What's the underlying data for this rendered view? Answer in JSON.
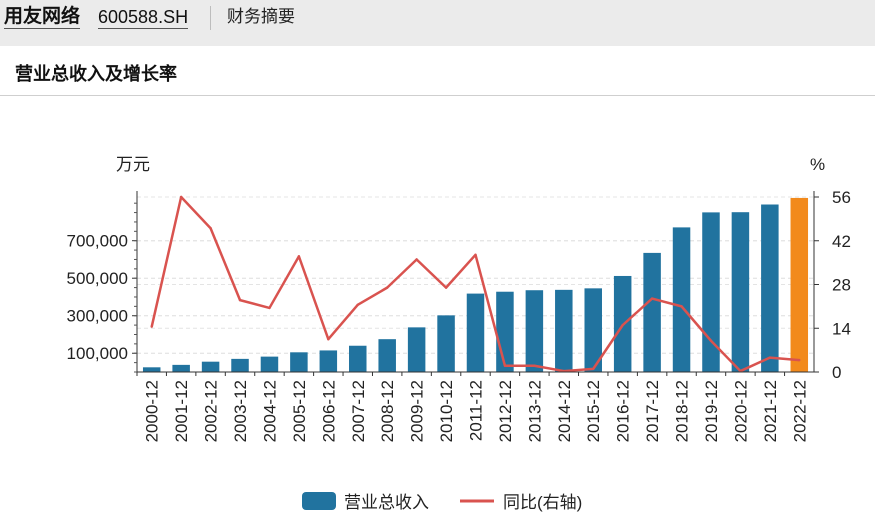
{
  "header": {
    "company_name": "用友网络",
    "stock_code": "600588.SH",
    "tab_label": "财务摘要"
  },
  "section": {
    "title": "营业总收入及增长率"
  },
  "chart_data": {
    "type": "bar",
    "categories": [
      "2000-12",
      "2001-12",
      "2002-12",
      "2003-12",
      "2004-12",
      "2005-12",
      "2006-12",
      "2007-12",
      "2008-12",
      "2009-12",
      "2010-12",
      "2011-12",
      "2012-12",
      "2013-12",
      "2014-12",
      "2015-12",
      "2016-12",
      "2017-12",
      "2018-12",
      "2019-12",
      "2020-12",
      "2021-12",
      "2022-12"
    ],
    "series": [
      {
        "name": "营业总收入",
        "type": "bar",
        "axis": "left",
        "color": "#21739f",
        "highlight_color": "#f28a1c",
        "highlight_index": 22,
        "values": [
          25000,
          38000,
          55000,
          70000,
          82000,
          105000,
          115000,
          140000,
          175000,
          238000,
          302000,
          418000,
          428000,
          436000,
          438000,
          446000,
          512000,
          635000,
          771000,
          851000,
          852000,
          893000,
          928000
        ]
      },
      {
        "name": "同比(右轴)",
        "type": "line",
        "axis": "right",
        "color": "#d9534f",
        "values": [
          14.5,
          56,
          46,
          23,
          20.5,
          37,
          10.5,
          21.5,
          27,
          36,
          27,
          37.5,
          2,
          2,
          0.3,
          1,
          15,
          23.5,
          21,
          10,
          0.3,
          4.6,
          3.8
        ]
      }
    ],
    "left_axis": {
      "unit": "万元",
      "ticks": [
        "100,000",
        "300,000",
        "500,000",
        "700,000"
      ],
      "tick_values": [
        100000,
        300000,
        500000,
        700000
      ],
      "range": [
        0,
        933000
      ]
    },
    "right_axis": {
      "unit": "%",
      "ticks": [
        "0",
        "14",
        "28",
        "42",
        "56"
      ],
      "tick_values": [
        0,
        14,
        28,
        42,
        56
      ],
      "range": [
        0,
        56
      ]
    },
    "grid": true,
    "legend_position": "bottom-center"
  }
}
